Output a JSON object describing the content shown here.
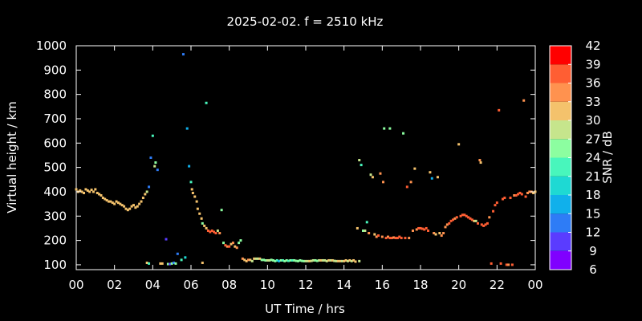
{
  "chart_data": {
    "type": "scatter",
    "title": "2025-02-02. f = 2510 kHz",
    "xlabel": "UT Time / hrs",
    "ylabel": "Virtual height / km",
    "xlim": [
      0,
      24
    ],
    "ylim": [
      80,
      1000
    ],
    "x_ticks": [
      "00",
      "02",
      "04",
      "06",
      "08",
      "10",
      "12",
      "14",
      "16",
      "18",
      "20",
      "22",
      "00"
    ],
    "y_ticks": [
      "100",
      "200",
      "300",
      "400",
      "500",
      "600",
      "700",
      "800",
      "900",
      "1000"
    ],
    "colorbar": {
      "label": "SNR / dB",
      "range": [
        6,
        42
      ],
      "ticks": [
        "6",
        "9",
        "12",
        "15",
        "18",
        "21",
        "24",
        "27",
        "30",
        "33",
        "36",
        "39",
        "42"
      ],
      "colors": [
        "#8000ff",
        "#5a3cff",
        "#2e7cf6",
        "#10b0eb",
        "#1ed9d3",
        "#48f6bc",
        "#8cfea0",
        "#c6e58c",
        "#f4c26c",
        "#ff924f",
        "#ff5e33",
        "#ff0000"
      ]
    },
    "points": [
      [
        0.0,
        410,
        31
      ],
      [
        0.1,
        400,
        31
      ],
      [
        0.2,
        405,
        30
      ],
      [
        0.3,
        400,
        31
      ],
      [
        0.4,
        395,
        30
      ],
      [
        0.5,
        410,
        32
      ],
      [
        0.6,
        405,
        31
      ],
      [
        0.7,
        400,
        30
      ],
      [
        0.8,
        408,
        30
      ],
      [
        0.9,
        400,
        31
      ],
      [
        1.0,
        410,
        30
      ],
      [
        1.1,
        395,
        31
      ],
      [
        1.2,
        390,
        30
      ],
      [
        1.3,
        385,
        31
      ],
      [
        1.4,
        375,
        30
      ],
      [
        1.5,
        370,
        31
      ],
      [
        1.6,
        365,
        30
      ],
      [
        1.7,
        360,
        31
      ],
      [
        1.8,
        360,
        30
      ],
      [
        1.9,
        355,
        31
      ],
      [
        2.0,
        350,
        30
      ],
      [
        2.1,
        360,
        31
      ],
      [
        2.2,
        355,
        30
      ],
      [
        2.3,
        350,
        31
      ],
      [
        2.4,
        345,
        30
      ],
      [
        2.5,
        340,
        31
      ],
      [
        2.6,
        330,
        32
      ],
      [
        2.7,
        325,
        31
      ],
      [
        2.8,
        330,
        32
      ],
      [
        2.9,
        340,
        31
      ],
      [
        3.0,
        345,
        30
      ],
      [
        3.1,
        335,
        31
      ],
      [
        3.2,
        340,
        32
      ],
      [
        3.3,
        350,
        31
      ],
      [
        3.4,
        360,
        30
      ],
      [
        3.5,
        375,
        31
      ],
      [
        3.6,
        390,
        30
      ],
      [
        3.7,
        400,
        29
      ],
      [
        3.8,
        420,
        14
      ],
      [
        4.0,
        630,
        23
      ],
      [
        3.9,
        540,
        13
      ],
      [
        4.1,
        505,
        27
      ],
      [
        4.15,
        520,
        26
      ],
      [
        4.25,
        490,
        14
      ],
      [
        4.7,
        205,
        11
      ],
      [
        5.6,
        965,
        12
      ],
      [
        5.8,
        660,
        16
      ],
      [
        5.9,
        505,
        15
      ],
      [
        6.0,
        440,
        22
      ],
      [
        6.05,
        410,
        31
      ],
      [
        6.1,
        395,
        31
      ],
      [
        6.2,
        380,
        31
      ],
      [
        6.3,
        360,
        31
      ],
      [
        6.35,
        330,
        31
      ],
      [
        6.45,
        310,
        31
      ],
      [
        6.55,
        290,
        30
      ],
      [
        6.6,
        270,
        24
      ],
      [
        6.7,
        260,
        32
      ],
      [
        6.8,
        250,
        32
      ],
      [
        6.8,
        765,
        23
      ],
      [
        6.9,
        240,
        37
      ],
      [
        7.0,
        235,
        36
      ],
      [
        7.1,
        240,
        37
      ],
      [
        7.2,
        235,
        37
      ],
      [
        7.3,
        230,
        36
      ],
      [
        7.4,
        240,
        28
      ],
      [
        7.5,
        230,
        35
      ],
      [
        7.6,
        325,
        26
      ],
      [
        7.7,
        190,
        25
      ],
      [
        7.8,
        180,
        36
      ],
      [
        7.9,
        175,
        34
      ],
      [
        8.0,
        175,
        37
      ],
      [
        8.1,
        185,
        30
      ],
      [
        8.2,
        190,
        33
      ],
      [
        8.3,
        175,
        30
      ],
      [
        8.4,
        170,
        33
      ],
      [
        8.5,
        190,
        26
      ],
      [
        8.6,
        200,
        25
      ],
      [
        8.7,
        125,
        33
      ],
      [
        8.8,
        120,
        30
      ],
      [
        8.9,
        115,
        31
      ],
      [
        9.0,
        120,
        33
      ],
      [
        9.1,
        120,
        31
      ],
      [
        9.2,
        115,
        28
      ],
      [
        9.3,
        125,
        30
      ],
      [
        9.4,
        125,
        29
      ],
      [
        9.5,
        125,
        28
      ],
      [
        9.6,
        125,
        30
      ],
      [
        9.7,
        120,
        24
      ],
      [
        9.8,
        120,
        26
      ],
      [
        9.9,
        118,
        26
      ],
      [
        10.0,
        118,
        29
      ],
      [
        10.1,
        118,
        27
      ],
      [
        10.2,
        120,
        24
      ],
      [
        10.3,
        118,
        25
      ],
      [
        10.4,
        115,
        24
      ],
      [
        10.5,
        118,
        23
      ],
      [
        10.6,
        115,
        15
      ],
      [
        10.7,
        118,
        25
      ],
      [
        10.8,
        118,
        22
      ],
      [
        10.9,
        115,
        24
      ],
      [
        11.0,
        118,
        25
      ],
      [
        11.1,
        116,
        23
      ],
      [
        11.2,
        118,
        26
      ],
      [
        11.3,
        118,
        22
      ],
      [
        11.4,
        118,
        24
      ],
      [
        11.5,
        116,
        26
      ],
      [
        11.6,
        115,
        25
      ],
      [
        11.7,
        118,
        26
      ],
      [
        11.8,
        116,
        25
      ],
      [
        11.9,
        115,
        24
      ],
      [
        12.0,
        115,
        27
      ],
      [
        12.1,
        115,
        28
      ],
      [
        12.2,
        115,
        30
      ],
      [
        12.3,
        116,
        28
      ],
      [
        12.4,
        118,
        27
      ],
      [
        12.5,
        118,
        26
      ],
      [
        12.6,
        116,
        25
      ],
      [
        12.7,
        118,
        27
      ],
      [
        12.8,
        118,
        30
      ],
      [
        12.9,
        118,
        28
      ],
      [
        13.0,
        118,
        27
      ],
      [
        13.1,
        115,
        28
      ],
      [
        13.2,
        118,
        31
      ],
      [
        13.3,
        118,
        29
      ],
      [
        13.4,
        118,
        30
      ],
      [
        13.5,
        116,
        27
      ],
      [
        13.6,
        115,
        28
      ],
      [
        13.7,
        115,
        30
      ],
      [
        13.8,
        115,
        31
      ],
      [
        13.9,
        115,
        28
      ],
      [
        14.0,
        115,
        31
      ],
      [
        14.1,
        118,
        30
      ],
      [
        14.2,
        115,
        29
      ],
      [
        14.3,
        118,
        30
      ],
      [
        14.4,
        115,
        28
      ],
      [
        14.5,
        118,
        31
      ],
      [
        14.6,
        113,
        30
      ],
      [
        14.8,
        115,
        27
      ],
      [
        3.7,
        108,
        30
      ],
      [
        3.8,
        105,
        22
      ],
      [
        4.4,
        105,
        31
      ],
      [
        4.5,
        105,
        30
      ],
      [
        4.8,
        103,
        25
      ],
      [
        4.9,
        103,
        10
      ],
      [
        5.0,
        105,
        26
      ],
      [
        5.1,
        108,
        13
      ],
      [
        5.2,
        105,
        24
      ],
      [
        5.3,
        145,
        12
      ],
      [
        5.5,
        120,
        22
      ],
      [
        5.7,
        130,
        20
      ],
      [
        6.6,
        108,
        30
      ],
      [
        14.7,
        250,
        32
      ],
      [
        14.8,
        530,
        28
      ],
      [
        14.9,
        510,
        22
      ],
      [
        15.0,
        240,
        26
      ],
      [
        15.1,
        240,
        28
      ],
      [
        15.2,
        275,
        21
      ],
      [
        15.3,
        230,
        33
      ],
      [
        15.4,
        470,
        27
      ],
      [
        15.5,
        460,
        30
      ],
      [
        15.6,
        225,
        30
      ],
      [
        15.7,
        215,
        34
      ],
      [
        15.8,
        220,
        36
      ],
      [
        15.9,
        475,
        33
      ],
      [
        16.0,
        215,
        35
      ],
      [
        16.05,
        440,
        33
      ],
      [
        16.1,
        660,
        25
      ],
      [
        16.2,
        210,
        36
      ],
      [
        16.3,
        215,
        35
      ],
      [
        16.4,
        210,
        36
      ],
      [
        16.4,
        660,
        26
      ],
      [
        16.5,
        210,
        36
      ],
      [
        16.6,
        212,
        35
      ],
      [
        16.7,
        210,
        36
      ],
      [
        16.8,
        210,
        36
      ],
      [
        16.9,
        215,
        37
      ],
      [
        17.0,
        210,
        36
      ],
      [
        17.1,
        640,
        25
      ],
      [
        17.2,
        210,
        36
      ],
      [
        17.3,
        420,
        36
      ],
      [
        17.4,
        210,
        33
      ],
      [
        17.5,
        440,
        33
      ],
      [
        17.6,
        240,
        33
      ],
      [
        17.7,
        495,
        32
      ],
      [
        17.8,
        245,
        34
      ],
      [
        17.9,
        250,
        36
      ],
      [
        18.0,
        250,
        37
      ],
      [
        18.1,
        248,
        37
      ],
      [
        18.2,
        245,
        36
      ],
      [
        18.3,
        250,
        37
      ],
      [
        18.4,
        240,
        36
      ],
      [
        18.5,
        480,
        32
      ],
      [
        18.6,
        455,
        15
      ],
      [
        18.7,
        230,
        35
      ],
      [
        18.8,
        225,
        32
      ],
      [
        18.9,
        460,
        32
      ],
      [
        19.0,
        230,
        32
      ],
      [
        19.1,
        220,
        33
      ],
      [
        19.2,
        230,
        33
      ],
      [
        19.3,
        255,
        34
      ],
      [
        19.4,
        265,
        34
      ],
      [
        19.5,
        270,
        36
      ],
      [
        19.6,
        280,
        36
      ],
      [
        19.7,
        285,
        37
      ],
      [
        19.8,
        290,
        34
      ],
      [
        19.9,
        295,
        36
      ],
      [
        20.0,
        595,
        32
      ],
      [
        20.1,
        300,
        36
      ],
      [
        20.2,
        305,
        37
      ],
      [
        20.3,
        305,
        38
      ],
      [
        20.4,
        300,
        36
      ],
      [
        20.5,
        295,
        37
      ],
      [
        20.6,
        290,
        38
      ],
      [
        20.7,
        285,
        37
      ],
      [
        20.8,
        280,
        30
      ],
      [
        20.9,
        280,
        28
      ],
      [
        21.0,
        270,
        36
      ],
      [
        21.1,
        530,
        33
      ],
      [
        21.15,
        520,
        30
      ],
      [
        21.2,
        265,
        37
      ],
      [
        21.3,
        260,
        36
      ],
      [
        21.4,
        265,
        37
      ],
      [
        21.5,
        270,
        36
      ],
      [
        21.6,
        295,
        33
      ],
      [
        21.7,
        105,
        37
      ],
      [
        21.8,
        320,
        36
      ],
      [
        21.9,
        345,
        37
      ],
      [
        22.0,
        355,
        37
      ],
      [
        22.1,
        735,
        36
      ],
      [
        22.2,
        105,
        37
      ],
      [
        22.3,
        370,
        36
      ],
      [
        22.4,
        375,
        37
      ],
      [
        22.5,
        100,
        36
      ],
      [
        22.6,
        100,
        33
      ],
      [
        22.7,
        375,
        37
      ],
      [
        22.8,
        100,
        37
      ],
      [
        22.9,
        385,
        33
      ],
      [
        23.0,
        385,
        37
      ],
      [
        23.1,
        390,
        37
      ],
      [
        23.2,
        395,
        38
      ],
      [
        23.3,
        390,
        36
      ],
      [
        23.4,
        775,
        33
      ],
      [
        23.5,
        380,
        36
      ],
      [
        23.6,
        395,
        34
      ],
      [
        23.7,
        400,
        34
      ],
      [
        23.8,
        400,
        33
      ],
      [
        23.9,
        395,
        31
      ],
      [
        24.0,
        400,
        32
      ]
    ]
  }
}
